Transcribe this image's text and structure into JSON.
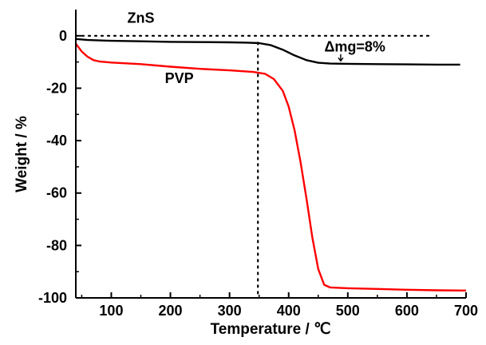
{
  "chart_data": {
    "type": "line",
    "title": "",
    "xlabel": "Temperature / ℃",
    "ylabel": "Weight / %",
    "xlim": [
      40,
      700
    ],
    "ylim": [
      -100,
      10
    ],
    "xticks": [
      100,
      200,
      300,
      400,
      500,
      600,
      700
    ],
    "yticks": [
      0,
      -20,
      -40,
      -60,
      -80,
      -100
    ],
    "grid": false,
    "legend": "none",
    "series": [
      {
        "name": "ZnS",
        "color": "#000000",
        "x": [
          40,
          60,
          100,
          150,
          200,
          250,
          300,
          330,
          350,
          370,
          390,
          410,
          430,
          450,
          470,
          500,
          550,
          600,
          650,
          690
        ],
        "y": [
          -1.2,
          -1.6,
          -1.9,
          -2.1,
          -2.3,
          -2.4,
          -2.5,
          -2.6,
          -2.8,
          -3.6,
          -5.3,
          -7.5,
          -9.3,
          -10.3,
          -10.6,
          -10.7,
          -10.8,
          -10.9,
          -11.0,
          -11.0
        ]
      },
      {
        "name": "PVP",
        "color": "#ff0000",
        "x": [
          40,
          50,
          60,
          70,
          80,
          100,
          150,
          200,
          250,
          300,
          340,
          360,
          375,
          390,
          400,
          410,
          420,
          430,
          440,
          450,
          460,
          470,
          500,
          550,
          600,
          650,
          700
        ],
        "y": [
          -3,
          -6,
          -8,
          -9.3,
          -9.8,
          -10.2,
          -10.8,
          -11.8,
          -12.6,
          -13.2,
          -13.8,
          -14.5,
          -16.5,
          -21,
          -27,
          -36,
          -48,
          -62,
          -77,
          -89,
          -95,
          -96,
          -96.3,
          -96.6,
          -96.9,
          -97.1,
          -97.2
        ]
      }
    ],
    "reference_lines": [
      {
        "orientation": "horizontal",
        "value": 0,
        "style": "dotted"
      },
      {
        "orientation": "vertical",
        "value": 348,
        "style": "dotted"
      }
    ],
    "annotations": [
      {
        "text": "ZnS",
        "x": 150,
        "y": 5
      },
      {
        "text": "PVP",
        "x": 215,
        "y": -18
      },
      {
        "text": "Δmg=8%",
        "x": 512,
        "y": -6
      }
    ]
  }
}
